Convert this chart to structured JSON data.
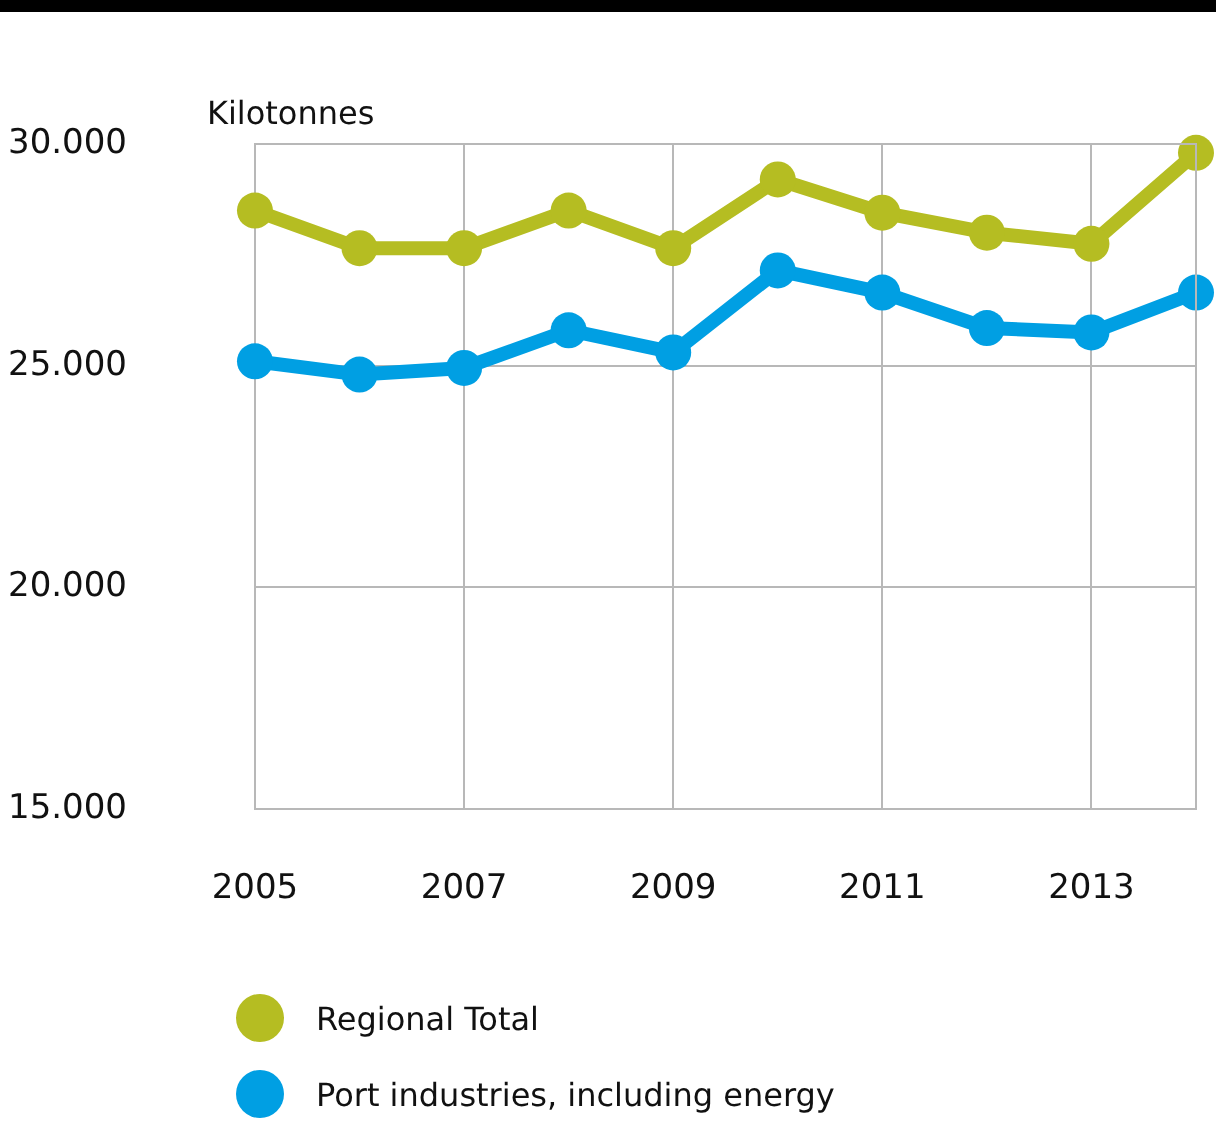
{
  "chart_data": {
    "type": "line",
    "ylabel": "Kilotonnes",
    "x": [
      2005,
      2006,
      2007,
      2008,
      2009,
      2010,
      2011,
      2012,
      2013,
      2014
    ],
    "xlim": [
      2005,
      2014
    ],
    "xticks": [
      2005,
      2007,
      2009,
      2011,
      2013
    ],
    "ylim": [
      15000,
      30000
    ],
    "yticks": [
      {
        "value": 15000,
        "label": "15.000"
      },
      {
        "value": 20000,
        "label": "20.000"
      },
      {
        "value": 25000,
        "label": "25.000"
      },
      {
        "value": 30000,
        "label": "30.000"
      }
    ],
    "series": [
      {
        "name": "Regional Total",
        "color": "#b5bd22",
        "values": [
          28500,
          27650,
          27650,
          28500,
          27650,
          29200,
          28450,
          28000,
          27750,
          29800
        ]
      },
      {
        "name": "Port industries, including energy",
        "color": "#009fe3",
        "values": [
          25100,
          24800,
          24950,
          25800,
          25300,
          27150,
          26650,
          25850,
          25750,
          26650
        ]
      }
    ],
    "grid": true,
    "legend": "bottom",
    "marker": "circle",
    "line_style": "solid"
  }
}
